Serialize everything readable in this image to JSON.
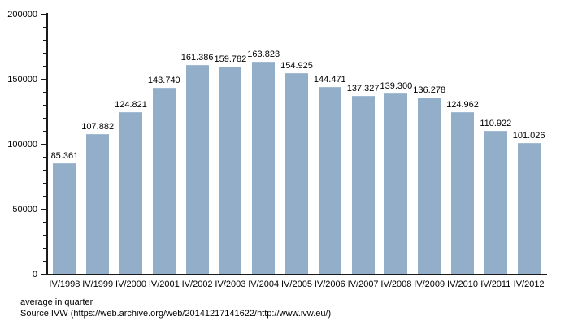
{
  "chart_data": {
    "type": "bar",
    "title": "",
    "xlabel": "",
    "ylabel": "",
    "categories": [
      "IV/1998",
      "IV/1999",
      "IV/2000",
      "IV/2001",
      "IV/2002",
      "IV/2003",
      "IV/2004",
      "IV/2005",
      "IV/2006",
      "IV/2007",
      "IV/2008",
      "IV/2009",
      "IV/2010",
      "IV/2011",
      "IV/2012"
    ],
    "values": [
      85361,
      107882,
      124821,
      143740,
      161386,
      159782,
      163823,
      154925,
      144471,
      137327,
      139300,
      136278,
      124962,
      110922,
      101026
    ],
    "value_labels": [
      "85.361",
      "107.882",
      "124.821",
      "143.740",
      "161.386",
      "159.782",
      "163.823",
      "154.925",
      "144.471",
      "137.327",
      "139.300",
      "136.278",
      "124.962",
      "110.922",
      "101.026"
    ],
    "ylim": [
      0,
      200000
    ],
    "yticks": [
      0,
      50000,
      100000,
      150000,
      200000
    ],
    "ytick_labels": [
      "0",
      "50000",
      "100000",
      "150000",
      "200000"
    ],
    "minor_grid_step": 10000,
    "grid": "on",
    "legend_position": "none",
    "bar_color": "#92aec9",
    "grid_minor_color": "#ebebeb",
    "grid_major_color": "#c6c6c6",
    "axis_color": "#1a1a1a"
  },
  "footer": {
    "caption": "average in quarter",
    "source": "Source IVW (https://web.archive.org/web/20141217141622/http://www.ivw.eu/)"
  }
}
